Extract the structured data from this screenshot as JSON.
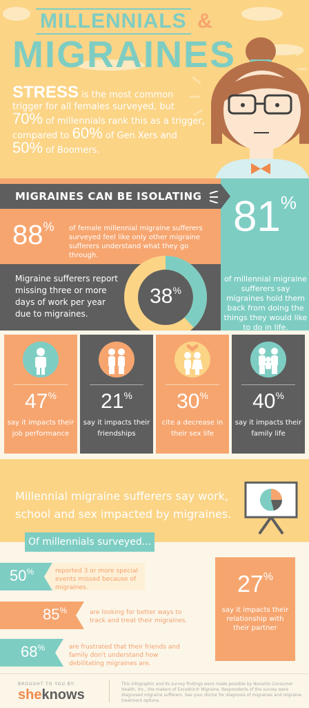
{
  "header": {
    "title_line1": "MILLENNIALS",
    "title_amp": "&",
    "title_line2": "MIGRAINES"
  },
  "stress": {
    "lead": "STRESS",
    "text1": " is the most common trigger for all females surveyed, but ",
    "pct_millennials": "70%",
    "text2": " of millennials rank this as a trigger, compared to ",
    "pct_genx": "60%",
    "text3": " of Gen Xers and ",
    "pct_boomers": "50%",
    "text4": " of Boomers."
  },
  "isolating": {
    "banner": "MIGRAINES CAN BE ISOLATING",
    "pct_88": "88",
    "text_88": "of female millennial migraine sufferers surveyed feel like only other migraine sufferers understand what they go through.",
    "pct_81": "81",
    "text_81": "of millennial migraine sufferers say migraines hold them back from doing the things they would like to do in life.",
    "miss_text": "Migraine sufferers report missing three or more days of work per year due to migraines.",
    "pct_38": "38",
    "donut_fraction": 0.38
  },
  "impacts": [
    {
      "pct": "47",
      "label": "say it impacts their job performance",
      "icon": "businessman-icon",
      "bg": "#f6a56f",
      "circ": "#7ecdc3"
    },
    {
      "pct": "21",
      "label": "say it impacts their friendships",
      "icon": "friends-icon",
      "bg": "#5e5e5e",
      "circ": "#f6a56f"
    },
    {
      "pct": "30",
      "label": "cite a decrease in their sex life",
      "icon": "couple-heart-icon",
      "bg": "#f6a56f",
      "circ": "#fbd486"
    },
    {
      "pct": "40",
      "label": "say it impacts their family life",
      "icon": "family-icon",
      "bg": "#5e5e5e",
      "circ": "#7ecdc3"
    }
  ],
  "work": {
    "headline": "Millennial migraine sufferers say work, school and sex impacted by migraines.",
    "surveyed": "Of millennials surveyed...",
    "rows": [
      {
        "pct": "50",
        "text": "reported 3 or more special events missed because of migraines."
      },
      {
        "pct": "85",
        "text": "are looking for better ways to track and treat their migraines."
      },
      {
        "pct": "68",
        "text": "are frustrated that their friends and family don't understand how debilitating migraines are."
      }
    ],
    "pct_27": "27",
    "text_27": "say it impacts their relationship with their partner"
  },
  "footer": {
    "brought": "BROUGHT TO YOU BY:",
    "logo_a": "she",
    "logo_b": "knows",
    "fine": "This infographic and its survey findings were made possible by Novartis Consumer Health, Inc., the makers of Excedrin® Migraine. Respondents of the survey were diagnosed migraine sufferers. See your doctor for diagnosis of migraines and migraine treatment options."
  },
  "colors": {
    "teal": "#7ecdc3",
    "orange": "#f6a56f",
    "yellow": "#fbd486",
    "gray": "#5e5e5e",
    "cream": "#fbf6e8"
  }
}
